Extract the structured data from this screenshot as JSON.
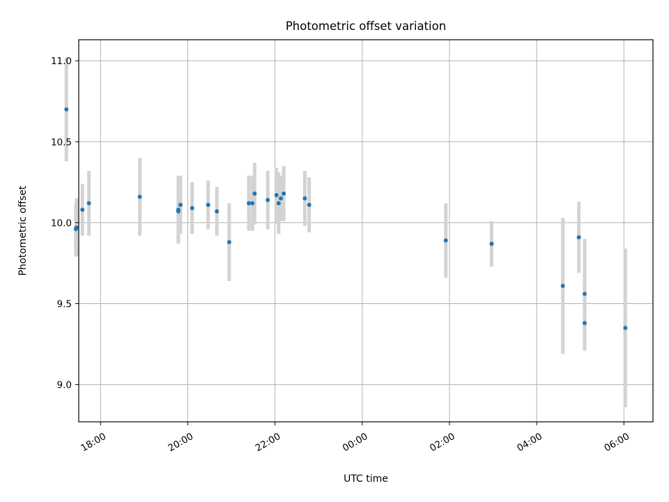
{
  "chart_data": {
    "type": "scatter",
    "title": "Photometric offset variation",
    "xlabel": "UTC time",
    "ylabel": "Photometric offset",
    "grid": true,
    "x_unit": "datetime (UTC)",
    "xlim": [
      "17:30",
      "06:40"
    ],
    "ylim": [
      8.77,
      11.13
    ],
    "xticks": [
      "18:00",
      "20:00",
      "22:00",
      "00:00",
      "02:00",
      "04:00",
      "06:00"
    ],
    "yticks": [
      "9.0",
      "9.5",
      "10.0",
      "10.5",
      "11.0"
    ],
    "colors": {
      "marker": "#1f77b4",
      "errorbar": "#d3d3d3",
      "grid": "#b0b0b0"
    },
    "series": [
      {
        "points": [
          {
            "x": "17:13",
            "y": 10.7,
            "err": 0.32
          },
          {
            "x": "17:26",
            "y": 9.96,
            "err": 0.16
          },
          {
            "x": "17:27",
            "y": 9.97,
            "err": 0.18
          },
          {
            "x": "17:35",
            "y": 10.08,
            "err": 0.16
          },
          {
            "x": "17:44",
            "y": 10.12,
            "err": 0.2
          },
          {
            "x": "18:54",
            "y": 10.16,
            "err": 0.24
          },
          {
            "x": "19:47",
            "y": 10.08,
            "err": 0.21
          },
          {
            "x": "19:47",
            "y": 10.07,
            "err": 0.19
          },
          {
            "x": "19:50",
            "y": 10.11,
            "err": 0.18
          },
          {
            "x": "20:06",
            "y": 10.09,
            "err": 0.16
          },
          {
            "x": "20:28",
            "y": 10.11,
            "err": 0.15
          },
          {
            "x": "20:40",
            "y": 10.07,
            "err": 0.15
          },
          {
            "x": "20:57",
            "y": 9.88,
            "err": 0.24
          },
          {
            "x": "21:24",
            "y": 10.12,
            "err": 0.17
          },
          {
            "x": "21:29",
            "y": 10.12,
            "err": 0.17
          },
          {
            "x": "21:32",
            "y": 10.18,
            "err": 0.19
          },
          {
            "x": "21:50",
            "y": 10.14,
            "err": 0.18
          },
          {
            "x": "22:02",
            "y": 10.17,
            "err": 0.17
          },
          {
            "x": "22:05",
            "y": 10.12,
            "err": 0.19
          },
          {
            "x": "22:08",
            "y": 10.15,
            "err": 0.14
          },
          {
            "x": "22:12",
            "y": 10.18,
            "err": 0.17
          },
          {
            "x": "22:41",
            "y": 10.15,
            "err": 0.17
          },
          {
            "x": "22:47",
            "y": 10.11,
            "err": 0.17
          },
          {
            "x": "01:55",
            "y": 9.89,
            "err": 0.23
          },
          {
            "x": "02:58",
            "y": 9.87,
            "err": 0.14
          },
          {
            "x": "04:36",
            "y": 9.61,
            "err": 0.42
          },
          {
            "x": "04:58",
            "y": 9.91,
            "err": 0.22
          },
          {
            "x": "05:06",
            "y": 9.56,
            "err": 0.34
          },
          {
            "x": "05:06",
            "y": 9.38,
            "err": 0.17
          },
          {
            "x": "06:02",
            "y": 9.35,
            "err": 0.49
          }
        ]
      }
    ]
  }
}
